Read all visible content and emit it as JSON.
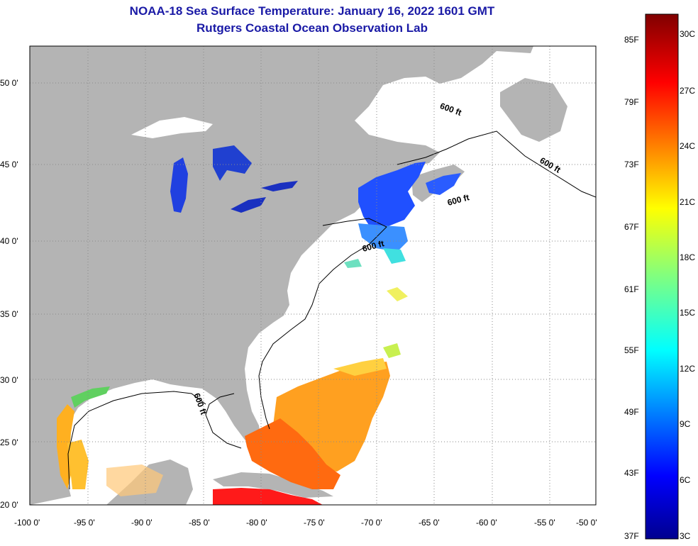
{
  "header": {
    "title": "NOAA-18 Sea Surface Temperature:  January 16, 2022 1601 GMT",
    "subtitle": "Rutgers Coastal Ocean Observation Lab"
  },
  "map": {
    "lat_labels": [
      "20 0'",
      "25 0'",
      "30 0'",
      "35 0'",
      "40 0'",
      "45 0'",
      "50 0'"
    ],
    "lon_labels": [
      "-100 0'",
      "-95 0'",
      "-90 0'",
      "-85 0'",
      "-80 0'",
      "-75 0'",
      "-70 0'",
      "-65 0'",
      "-60 0'",
      "-55 0'",
      "-50 0'"
    ],
    "contour_label": "600 ft",
    "colors": {
      "land": "#b4b4b4",
      "ocean": "#ffffff",
      "grid": "#777777"
    }
  },
  "colorbar": {
    "fahrenheit": [
      "85F",
      "79F",
      "73F",
      "67F",
      "61F",
      "55F",
      "49F",
      "43F",
      "37F"
    ],
    "celsius": [
      "30C",
      "27C",
      "24C",
      "21C",
      "18C",
      "15C",
      "12C",
      "9C",
      "6C",
      "3C"
    ]
  }
}
